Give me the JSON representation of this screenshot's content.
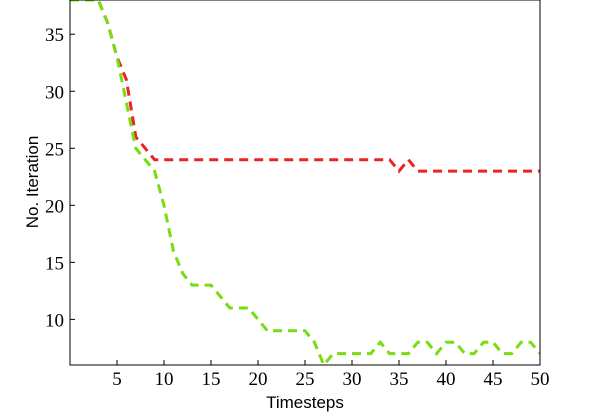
{
  "chart_data": {
    "type": "line",
    "xlabel": "Timesteps",
    "ylabel": "No. Iteration",
    "x": [
      0,
      1,
      2,
      3,
      4,
      5,
      6,
      7,
      8,
      9,
      10,
      11,
      12,
      13,
      14,
      15,
      16,
      17,
      18,
      19,
      20,
      21,
      22,
      23,
      24,
      25,
      26,
      27,
      28,
      29,
      30,
      31,
      32,
      33,
      34,
      35,
      36,
      37,
      38,
      39,
      40,
      41,
      42,
      43,
      44,
      45,
      46,
      47,
      48,
      49,
      50
    ],
    "series": [
      {
        "color": "#ee2222",
        "values": [
          38,
          38,
          38,
          38,
          36,
          33,
          31,
          26,
          25,
          24,
          24,
          24,
          24,
          24,
          24,
          24,
          24,
          24,
          24,
          24,
          24,
          24,
          24,
          24,
          24,
          24,
          24,
          24,
          24,
          24,
          24,
          24,
          24,
          24,
          24,
          23,
          24,
          23,
          23,
          23,
          23,
          23,
          23,
          23,
          23,
          23,
          23,
          23,
          23,
          23,
          23
        ]
      },
      {
        "color": "#77dd11",
        "values": [
          38,
          38,
          38,
          38,
          36,
          33,
          29,
          25,
          24,
          23,
          20,
          16,
          14,
          13,
          13,
          13,
          12,
          11,
          11,
          11,
          10,
          9,
          9,
          9,
          9,
          9,
          8,
          6,
          7,
          7,
          7,
          7,
          7,
          8,
          7,
          7,
          7,
          8,
          8,
          7,
          8,
          8,
          7,
          7,
          8,
          8,
          7,
          7,
          8,
          8,
          7
        ]
      }
    ],
    "xlim": [
      0,
      50
    ],
    "ylim": [
      6,
      38
    ],
    "xticks": [
      5,
      10,
      15,
      20,
      25,
      30,
      35,
      40,
      45,
      50
    ],
    "yticks": [
      10,
      15,
      20,
      25,
      30,
      35
    ]
  }
}
